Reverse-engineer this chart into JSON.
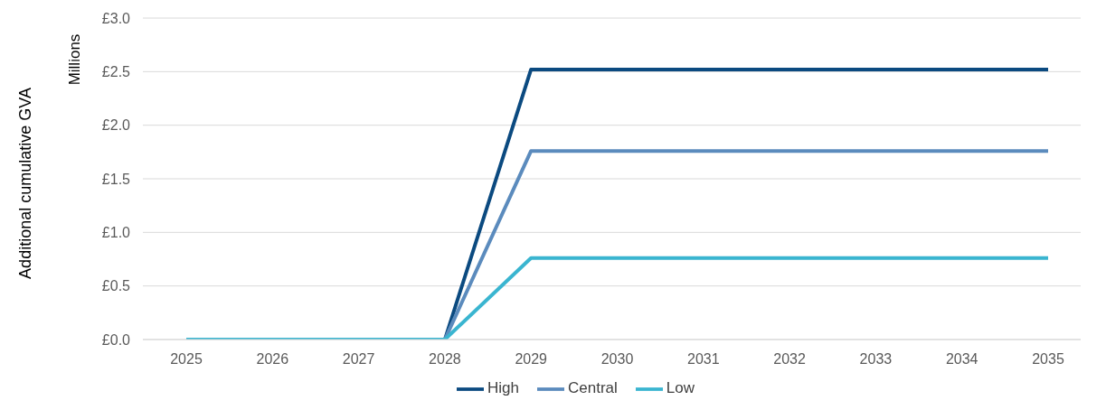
{
  "chart_data": {
    "type": "line",
    "ylabel": "Additional cumulative GVA",
    "annotations": [
      "Millions"
    ],
    "categories": [
      "2025",
      "2026",
      "2027",
      "2028",
      "2029",
      "2030",
      "2031",
      "2032",
      "2033",
      "2034",
      "2035"
    ],
    "series": [
      {
        "name": "High",
        "color": "#0b4a80",
        "values": [
          0,
          0,
          0,
          0,
          2.52,
          2.52,
          2.52,
          2.52,
          2.52,
          2.52,
          2.52
        ]
      },
      {
        "name": "Central",
        "color": "#5b8bbd",
        "values": [
          0,
          0,
          0,
          0,
          1.76,
          1.76,
          1.76,
          1.76,
          1.76,
          1.76,
          1.76
        ]
      },
      {
        "name": "Low",
        "color": "#3ab5d0",
        "values": [
          0,
          0,
          0,
          0,
          0.76,
          0.76,
          0.76,
          0.76,
          0.76,
          0.76,
          0.76
        ]
      }
    ],
    "ylim": [
      0,
      3
    ],
    "yticks": [
      {
        "value": 0,
        "label": "£0.0"
      },
      {
        "value": 0.5,
        "label": "£0.5"
      },
      {
        "value": 1,
        "label": "£1.0"
      },
      {
        "value": 1.5,
        "label": "£1.5"
      },
      {
        "value": 2,
        "label": "£2.0"
      },
      {
        "value": 2.5,
        "label": "£2.5"
      },
      {
        "value": 3,
        "label": "£3.0"
      }
    ],
    "grid": "y",
    "legend": "bottom",
    "marker": "none",
    "line_style": "solid"
  }
}
